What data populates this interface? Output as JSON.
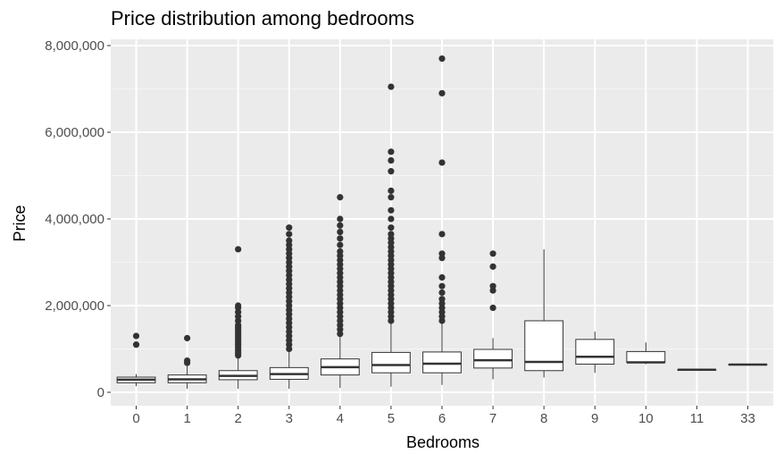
{
  "chart_data": {
    "type": "boxplot",
    "title": "Price distribution among bedrooms",
    "xlabel": "Bedrooms",
    "ylabel": "Price",
    "ylim": [
      -250000,
      8000000
    ],
    "y_ticks": [
      {
        "value": 0,
        "label": "0"
      },
      {
        "value": 2000000,
        "label": "2,000,000"
      },
      {
        "value": 4000000,
        "label": "4,000,000"
      },
      {
        "value": 6000000,
        "label": "6,000,000"
      },
      {
        "value": 8000000,
        "label": "8,000,000"
      }
    ],
    "grid": true,
    "legend": "none",
    "categories": [
      "0",
      "1",
      "2",
      "3",
      "4",
      "5",
      "6",
      "7",
      "8",
      "9",
      "10",
      "11",
      "33"
    ],
    "boxes": [
      {
        "category": "0",
        "q1": 220000,
        "median": 290000,
        "q3": 350000,
        "whisker_low": 140000,
        "whisker_high": 420000,
        "outliers": [
          1100000,
          1300000
        ]
      },
      {
        "category": "1",
        "q1": 220000,
        "median": 300000,
        "q3": 400000,
        "whisker_low": 80000,
        "whisker_high": 660000,
        "outliers": [
          680000,
          730000,
          1250000
        ]
      },
      {
        "category": "2",
        "q1": 290000,
        "median": 380000,
        "q3": 500000,
        "whisker_low": 80000,
        "whisker_high": 810000,
        "outliers": [
          850000,
          900000,
          950000,
          1000000,
          1050000,
          1100000,
          1150000,
          1200000,
          1250000,
          1300000,
          1350000,
          1400000,
          1450000,
          1500000,
          1550000,
          1650000,
          1750000,
          1850000,
          1950000,
          2000000,
          3300000
        ]
      },
      {
        "category": "3",
        "q1": 300000,
        "median": 420000,
        "q3": 570000,
        "whisker_low": 82000,
        "whisker_high": 980000,
        "outliers": [
          1000000,
          1100000,
          1200000,
          1300000,
          1400000,
          1500000,
          1600000,
          1700000,
          1800000,
          1900000,
          2000000,
          2100000,
          2200000,
          2300000,
          2400000,
          2500000,
          2600000,
          2700000,
          2800000,
          2900000,
          3000000,
          3100000,
          3200000,
          3300000,
          3400000,
          3500000,
          3650000,
          3800000
        ]
      },
      {
        "category": "4",
        "q1": 400000,
        "median": 580000,
        "q3": 770000,
        "whisker_low": 100000,
        "whisker_high": 1300000,
        "outliers": [
          1350000,
          1450000,
          1550000,
          1650000,
          1750000,
          1850000,
          1950000,
          2050000,
          2150000,
          2250000,
          2350000,
          2450000,
          2550000,
          2650000,
          2750000,
          2850000,
          2950000,
          3050000,
          3150000,
          3250000,
          3400000,
          3550000,
          3700000,
          3850000,
          4000000,
          4500000
        ]
      },
      {
        "category": "5",
        "q1": 450000,
        "median": 630000,
        "q3": 920000,
        "whisker_low": 130000,
        "whisker_high": 1600000,
        "outliers": [
          1650000,
          1750000,
          1850000,
          1950000,
          2050000,
          2150000,
          2250000,
          2350000,
          2450000,
          2550000,
          2650000,
          2750000,
          2850000,
          2950000,
          3050000,
          3150000,
          3250000,
          3350000,
          3450000,
          3550000,
          3650000,
          3800000,
          4000000,
          4200000,
          4500000,
          4650000,
          5100000,
          5350000,
          5550000,
          7050000
        ]
      },
      {
        "category": "6",
        "q1": 450000,
        "median": 660000,
        "q3": 930000,
        "whisker_low": 170000,
        "whisker_high": 1600000,
        "outliers": [
          1650000,
          1750000,
          1850000,
          1950000,
          2050000,
          2150000,
          2300000,
          2450000,
          2650000,
          3100000,
          3200000,
          3650000,
          5300000,
          6900000,
          7700000
        ]
      },
      {
        "category": "7",
        "q1": 560000,
        "median": 740000,
        "q3": 990000,
        "whisker_low": 300000,
        "whisker_high": 1250000,
        "outliers": [
          1950000,
          2350000,
          2450000,
          2900000,
          3200000
        ]
      },
      {
        "category": "8",
        "q1": 500000,
        "median": 700000,
        "q3": 1650000,
        "whisker_low": 340000,
        "whisker_high": 3300000,
        "outliers": []
      },
      {
        "category": "9",
        "q1": 650000,
        "median": 820000,
        "q3": 1220000,
        "whisker_low": 450000,
        "whisker_high": 1400000,
        "outliers": []
      },
      {
        "category": "10",
        "q1": 690000,
        "median": 690000,
        "q3": 940000,
        "whisker_low": 650000,
        "whisker_high": 1150000,
        "outliers": []
      },
      {
        "category": "11",
        "q1": 520000,
        "median": 520000,
        "q3": 520000,
        "whisker_low": 520000,
        "whisker_high": 520000,
        "outliers": []
      },
      {
        "category": "33",
        "q1": 640000,
        "median": 640000,
        "q3": 640000,
        "whisker_low": 640000,
        "whisker_high": 640000,
        "outliers": []
      }
    ],
    "colors": {
      "panel_background": "#ebebeb",
      "grid_major": "#ffffff",
      "grid_minor": "#f5f5f5",
      "box_fill": "#ffffff",
      "box_line": "#333333",
      "outlier": "#333333"
    }
  }
}
